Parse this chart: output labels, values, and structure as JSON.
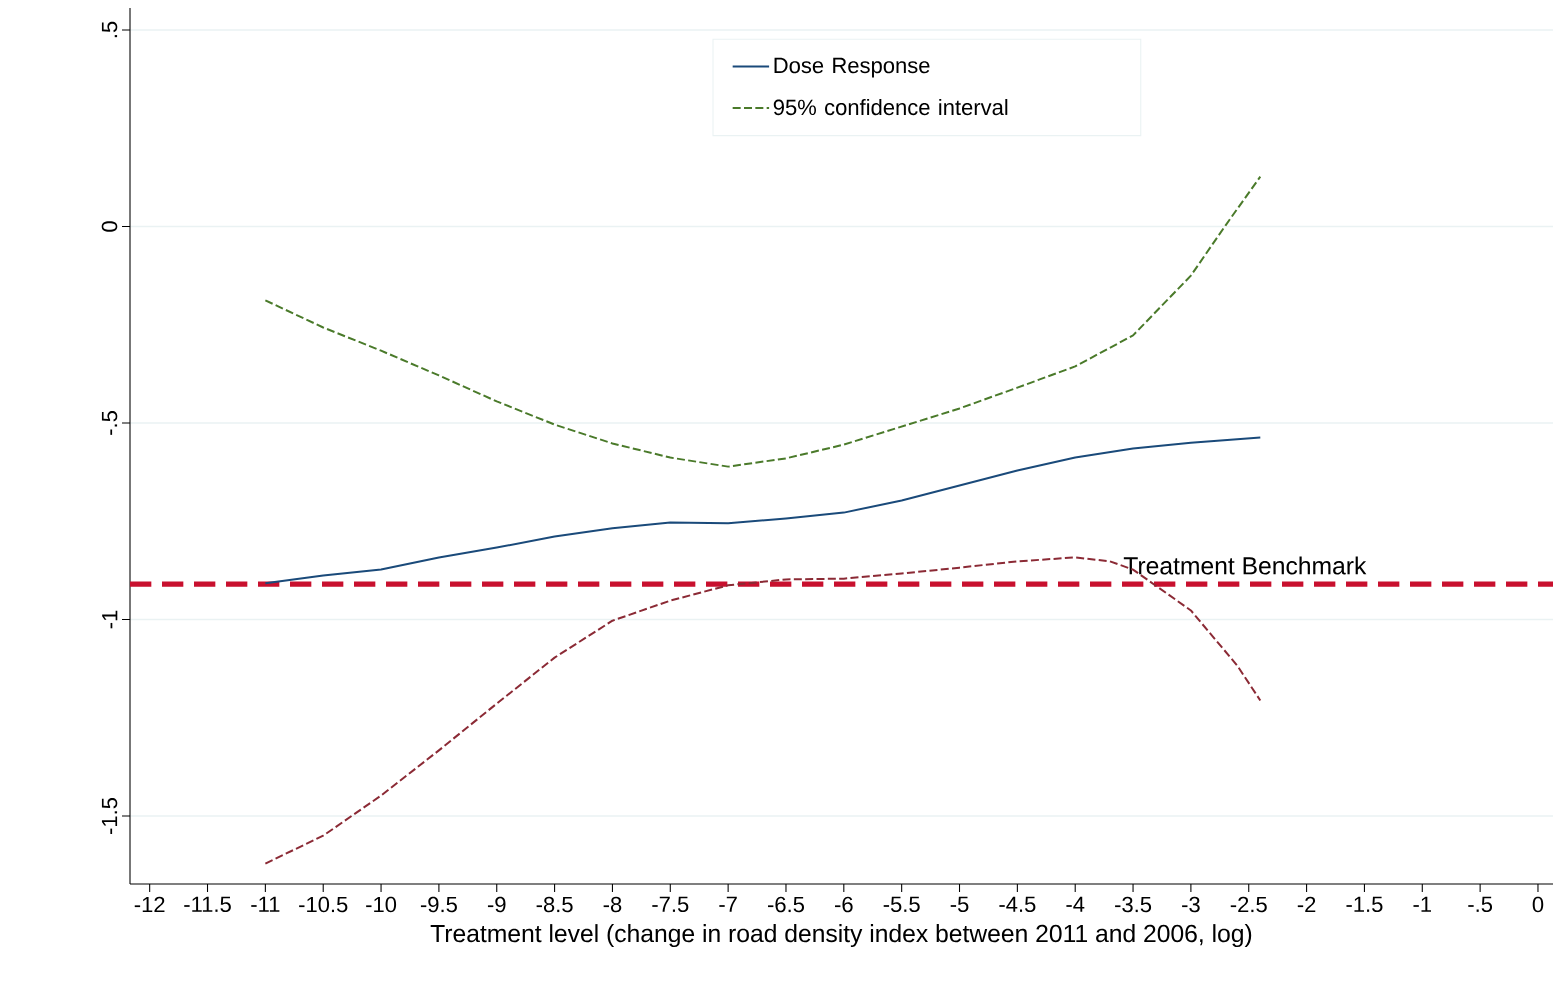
{
  "chart_data": {
    "type": "line",
    "xlabel": "Treatment level (change in road density index between 2011 and 2006, log)",
    "xlim": [
      -12.17,
      0.13
    ],
    "ylim": [
      -1.673,
      0.556
    ],
    "xticks": [
      -12,
      -11.5,
      -11,
      -10.5,
      -10,
      -9.5,
      -9,
      -8.5,
      -8,
      -7.5,
      -7,
      -6.5,
      -6,
      -5.5,
      -5,
      -4.5,
      -4,
      -3.5,
      -3,
      -2.5,
      -2,
      -1.5,
      -1,
      {
        "value": -0.5,
        "label": "-.5"
      },
      0
    ],
    "yticks": [
      {
        "value": 0.5,
        "label": ".5"
      },
      0,
      {
        "value": -0.5,
        "label": "-.5"
      },
      -1,
      -1.5
    ],
    "grid": "y",
    "legend": "top",
    "series": [
      {
        "name": "Dose Response",
        "color": "#1a4a7a",
        "line_style": "solid",
        "x": [
          -11,
          -10.5,
          -10,
          -9.5,
          -9,
          -8.5,
          -8,
          -7.5,
          -7,
          -6.5,
          -6,
          -5.5,
          -5,
          -4.5,
          -4,
          -3.5,
          -3,
          -2.4
        ],
        "values": [
          -0.908,
          -0.888,
          -0.873,
          -0.842,
          -0.817,
          -0.789,
          -0.768,
          -0.753,
          -0.755,
          -0.743,
          -0.728,
          -0.697,
          -0.659,
          -0.621,
          -0.588,
          -0.565,
          -0.55,
          -0.537
        ]
      },
      {
        "name": "95% confidence interval",
        "color": "#4a7a2a",
        "line_style": "dashed",
        "x": [
          -11,
          -10.5,
          -10,
          -9.5,
          -9,
          -8.5,
          -8,
          -7.5,
          -7,
          -6.5,
          -6,
          -5.5,
          -5,
          -4.5,
          -4,
          -3.5,
          -3,
          -2.7,
          -2.4
        ],
        "values": [
          -0.188,
          -0.257,
          -0.316,
          -0.379,
          -0.445,
          -0.504,
          -0.552,
          -0.588,
          -0.611,
          -0.59,
          -0.555,
          -0.509,
          -0.463,
          -0.41,
          -0.356,
          -0.277,
          -0.125,
          0.003,
          0.127
        ]
      },
      {
        "color": "#8b2a35",
        "line_style": "dashed",
        "x": [
          -11,
          -10.5,
          -10,
          -9.5,
          -9,
          -8.5,
          -8,
          -7.5,
          -7,
          -6.5,
          -6,
          -5.5,
          -5,
          -4.5,
          -4,
          -3.7,
          -3.5,
          -3,
          -2.6,
          -2.4
        ],
        "values": [
          -1.621,
          -1.55,
          -1.448,
          -1.333,
          -1.214,
          -1.097,
          -1.003,
          -0.952,
          -0.913,
          -0.898,
          -0.896,
          -0.883,
          -0.868,
          -0.852,
          -0.842,
          -0.852,
          -0.873,
          -0.977,
          -1.117,
          -1.206
        ]
      }
    ],
    "ref_lines": [
      {
        "axis": "y",
        "value": -0.91,
        "label": "Treatment Benchmark",
        "color": "#c8102e",
        "line_style": "dashed"
      }
    ]
  }
}
